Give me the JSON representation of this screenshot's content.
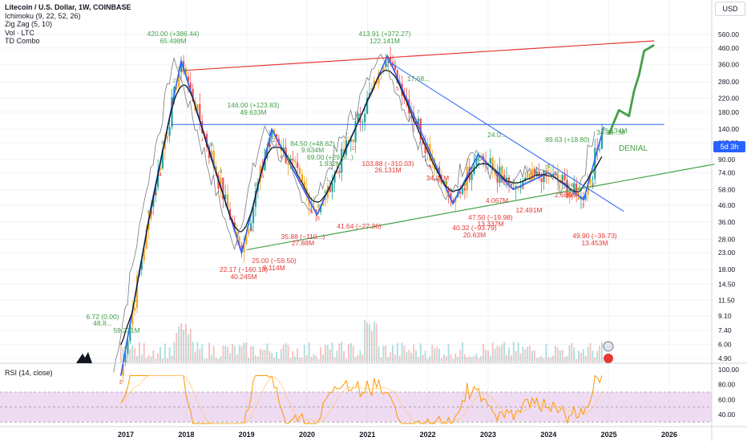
{
  "header": {
    "title": "Litecoin / U.S. Dollar, 1W, COINBASE",
    "indicators": [
      "Ichimoku (9, 22, 52, 26)",
      "Zig Zag (5, 10)",
      "Vol · LTC",
      "TD Combo"
    ],
    "currency_button": "USD",
    "rsi_label": "RSI (14, close)",
    "countdown_badge": "5d 3h"
  },
  "colors": {
    "up": "#26a69a",
    "down": "#ef5350",
    "zigzag": "#2962ff",
    "kijun": "#131722",
    "lagging": "#787b86",
    "resistance": "#e53935",
    "support": "#43a047",
    "projection": "#43a047",
    "td_green": "#43a047",
    "td_red": "#e53935",
    "candle_orange": "#f5a623",
    "rsi_line": "#ff9800",
    "rsi_band": "#e1bee7"
  },
  "chart_data": [
    {
      "type": "line",
      "title": "Litecoin / U.S. Dollar, 1W, COINBASE",
      "y_scale": "log",
      "x_ticks": [
        "2017",
        "2018",
        "2019",
        "2020",
        "2021",
        "2022",
        "2023",
        "2024",
        "2025",
        "2026"
      ],
      "y_ticks": [
        "560.00",
        "460.00",
        "360.00",
        "280.00",
        "220.00",
        "180.00",
        "140.00",
        "115.00",
        "90.00",
        "74.00",
        "58.00",
        "46.00",
        "36.00",
        "28.00",
        "23.00",
        "18.00",
        "14.50",
        "11.50",
        "9.10",
        "7.40",
        "6.00",
        "4.90"
      ],
      "series": [
        {
          "role": "zigzag",
          "x": [
            "2016-12",
            "2017-06",
            "2017-12",
            "2018-12",
            "2019-06",
            "2020-03",
            "2021-05",
            "2022-06",
            "2022-11",
            "2023-06",
            "2024-01",
            "2024-08",
            "2024-12"
          ],
          "values": [
            3.8,
            45,
            380,
            23,
            140,
            40,
            410,
            47,
            97,
            58,
            74,
            50,
            145
          ]
        }
      ],
      "annotations": [
        {
          "text": "420.00 (+386.44)",
          "color": "green"
        },
        {
          "text": "65.498M",
          "color": "green"
        },
        {
          "text": "413.91 (+372.27)",
          "color": "green"
        },
        {
          "text": "122.141M",
          "color": "green"
        },
        {
          "text": "146.00 (+123.83)",
          "color": "green"
        },
        {
          "text": "49.633M",
          "color": "green"
        },
        {
          "text": "84.50 (+48.62)",
          "color": "green"
        },
        {
          "text": "9.634M",
          "color": "green"
        },
        {
          "text": "69.00 (+29.6...)",
          "color": "green"
        },
        {
          "text": "1.932M",
          "color": "green"
        },
        {
          "text": "6.72 (0.00)",
          "color": "green"
        },
        {
          "text": "48.8...",
          "color": "green"
        },
        {
          "text": "59.231M",
          "color": "green"
        },
        {
          "text": "17.68...",
          "color": "green"
        },
        {
          "text": "25.134M",
          "color": "green"
        },
        {
          "text": "34.36...M",
          "color": "green"
        },
        {
          "text": "89.63 (+18.80)",
          "color": "green"
        },
        {
          "text": "24.0...",
          "color": "green"
        },
        {
          "text": "22.17 (−160.18)",
          "color": "red"
        },
        {
          "text": "40.245M",
          "color": "red"
        },
        {
          "text": "25.00 (−59.50)",
          "color": "red"
        },
        {
          "text": "9.114M",
          "color": "red"
        },
        {
          "text": "35.88 (−110...)",
          "color": "red"
        },
        {
          "text": "27.88M",
          "color": "red"
        },
        {
          "text": "41.64 (−27.36)",
          "color": "red"
        },
        {
          "text": "103.88 (−310.03)",
          "color": "red"
        },
        {
          "text": "26.131M",
          "color": "red"
        },
        {
          "text": "34.21M",
          "color": "red"
        },
        {
          "text": "40.32 (−93.79)",
          "color": "red"
        },
        {
          "text": "20.63M",
          "color": "red"
        },
        {
          "text": "47.50 (−19.98)",
          "color": "red"
        },
        {
          "text": "13.337M",
          "color": "red"
        },
        {
          "text": "49.90 (−39.73)",
          "color": "red"
        },
        {
          "text": "13.453M",
          "color": "red"
        },
        {
          "text": "12.491M",
          "color": "red"
        },
        {
          "text": "2.689M",
          "color": "red"
        },
        {
          "text": "4.067M",
          "color": "red"
        },
        {
          "text": "DENIAL",
          "color": "green"
        }
      ]
    },
    {
      "type": "line",
      "title": "RSI (14, close)",
      "y_ticks": [
        "100.00",
        "80.00",
        "60.00",
        "40.00"
      ],
      "x_ticks": [
        "2017",
        "2018",
        "2019",
        "2020",
        "2021",
        "2022",
        "2023",
        "2024",
        "2025",
        "2026"
      ]
    }
  ]
}
